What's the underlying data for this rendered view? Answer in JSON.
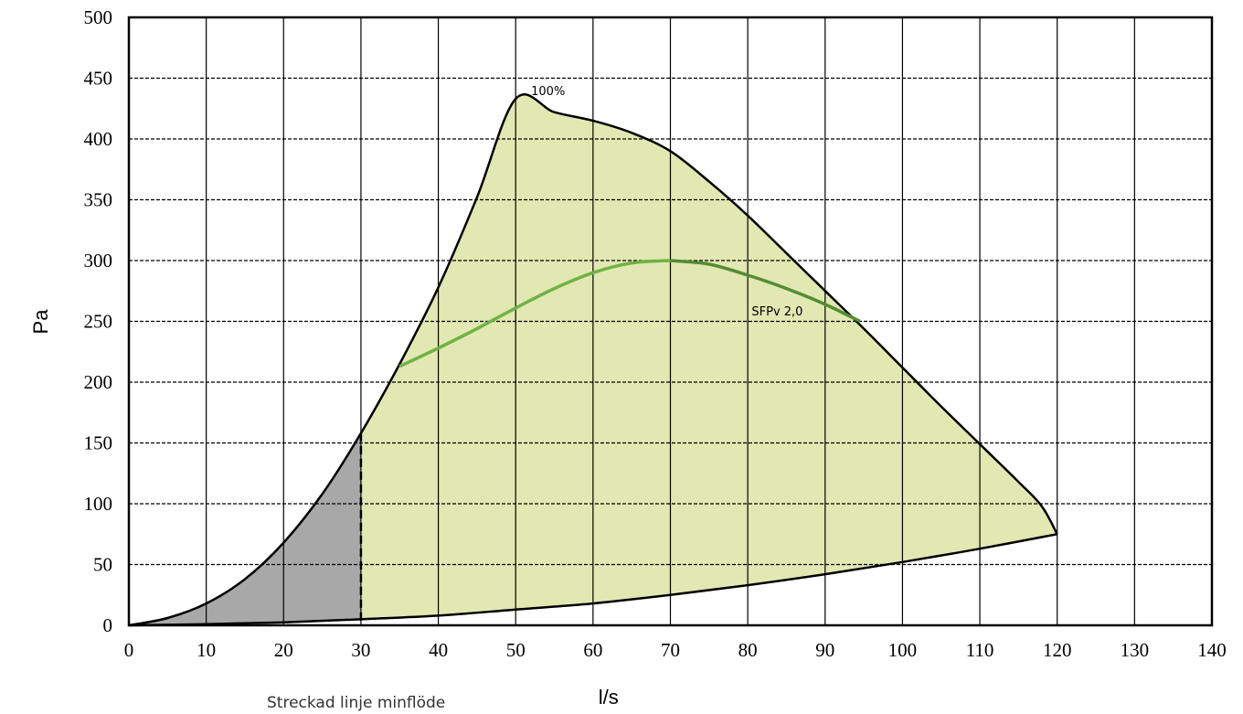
{
  "chart_data": {
    "type": "area",
    "xlabel": "l/s",
    "ylabel": "Pa",
    "xlim": [
      0,
      140
    ],
    "ylim": [
      0,
      500
    ],
    "xticks": [
      0,
      10,
      20,
      30,
      40,
      50,
      60,
      70,
      80,
      90,
      100,
      110,
      120,
      130,
      140
    ],
    "yticks": [
      0,
      50,
      100,
      150,
      200,
      250,
      300,
      350,
      400,
      450,
      500
    ],
    "grid": {
      "x": "solid",
      "y": "dashed"
    },
    "operating_area": {
      "upper_left": [
        [
          0,
          0
        ],
        [
          5,
          6
        ],
        [
          10,
          18
        ],
        [
          15,
          38
        ],
        [
          20,
          68
        ],
        [
          25,
          108
        ],
        [
          30,
          158
        ],
        [
          35,
          215
        ],
        [
          40,
          278
        ],
        [
          45,
          352
        ],
        [
          50,
          433
        ]
      ],
      "top": [
        [
          50,
          433
        ],
        [
          55,
          422
        ],
        [
          60,
          415
        ],
        [
          65,
          405
        ],
        [
          70,
          390
        ],
        [
          75,
          365
        ],
        [
          80,
          337
        ],
        [
          85,
          306
        ],
        [
          90,
          275
        ],
        [
          95,
          244
        ],
        [
          100,
          212
        ],
        [
          105,
          180
        ],
        [
          110,
          149
        ],
        [
          115,
          118
        ],
        [
          118,
          98
        ],
        [
          120,
          75
        ]
      ],
      "bottom": [
        [
          0,
          0
        ],
        [
          10,
          1
        ],
        [
          20,
          2.5
        ],
        [
          30,
          5
        ],
        [
          40,
          8
        ],
        [
          50,
          13
        ],
        [
          60,
          18
        ],
        [
          70,
          25
        ],
        [
          80,
          33
        ],
        [
          90,
          42
        ],
        [
          100,
          52
        ],
        [
          110,
          63
        ],
        [
          120,
          75
        ]
      ],
      "fill_color": "#e1e8b2"
    },
    "min_flow_region": {
      "x_max": 30,
      "fill_color": "#a8a8a8"
    },
    "min_flow_line": {
      "x": 30
    },
    "sfp_curve": {
      "label": "SFPv 2,0",
      "color_light": "#70b244",
      "color_dark": "#548c33",
      "points": [
        [
          35,
          213
        ],
        [
          40,
          228
        ],
        [
          45,
          244
        ],
        [
          50,
          261
        ],
        [
          55,
          277
        ],
        [
          60,
          290
        ],
        [
          65,
          298
        ],
        [
          70,
          300
        ],
        [
          75,
          297
        ],
        [
          80,
          288
        ],
        [
          85,
          277
        ],
        [
          90,
          264
        ],
        [
          94.5,
          250
        ]
      ]
    },
    "annotations": [
      {
        "text": "100%",
        "x": 52,
        "y": 436
      },
      {
        "text": "SFPv 2,0",
        "x": 80.5,
        "y": 255
      }
    ],
    "footnote": "Streckad linje minflöde"
  }
}
